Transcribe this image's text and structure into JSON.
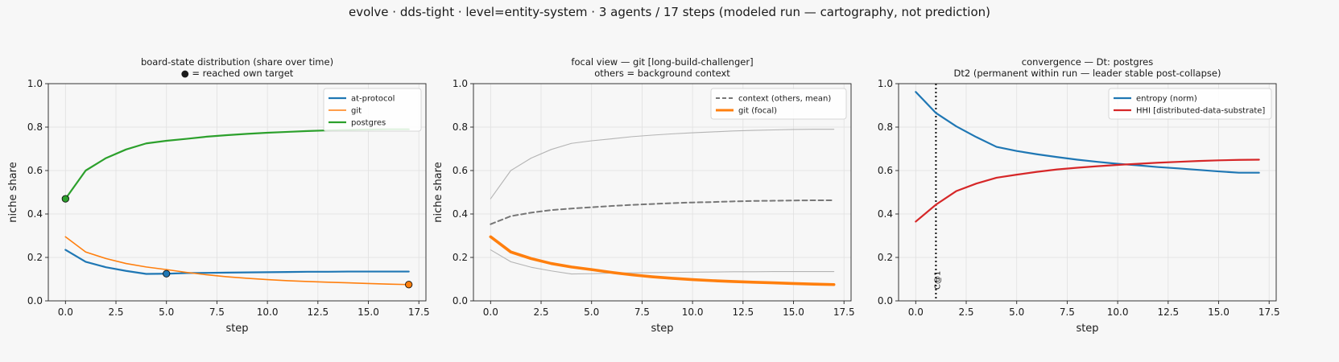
{
  "suptitle": "evolve · dds-tight · level=entity-system · 3 agents / 17 steps   (modeled run — cartography, not prediction)",
  "colors": {
    "blue": "#1f77b4",
    "orange": "#ff7f0e",
    "green": "#2ca02c",
    "red": "#d62728",
    "context": "#777777",
    "background": "#b4b4b4"
  },
  "chart_data": [
    {
      "type": "line",
      "title_lines": [
        "board-state distribution (share over time)",
        "● = reached own target"
      ],
      "xlabel": "step",
      "ylabel": "niche share",
      "xlim": [
        -0.85,
        17.85
      ],
      "ylim": [
        0,
        1
      ],
      "xticks": [
        0,
        2.5,
        5,
        7.5,
        10,
        12.5,
        15,
        17.5
      ],
      "xtick_labels": [
        "0.0",
        "2.5",
        "5.0",
        "7.5",
        "10.0",
        "12.5",
        "15.0",
        "17.5"
      ],
      "yticks": [
        0,
        0.2,
        0.4,
        0.6,
        0.8,
        1.0
      ],
      "ytick_labels": [
        "0.0",
        "0.2",
        "0.4",
        "0.6",
        "0.8",
        "1.0"
      ],
      "grid": true,
      "legend_position": "top-right",
      "x": [
        0,
        1,
        2,
        3,
        4,
        5,
        6,
        7,
        8,
        9,
        10,
        11,
        12,
        13,
        14,
        15,
        16,
        17
      ],
      "series": [
        {
          "name": "at-protocol",
          "color": "#1f77b4",
          "width": 2.2,
          "values": [
            0.235,
            0.18,
            0.155,
            0.138,
            0.124,
            0.125,
            0.128,
            0.129,
            0.13,
            0.131,
            0.132,
            0.133,
            0.134,
            0.134,
            0.135,
            0.135,
            0.135,
            0.135
          ],
          "marker_at": 5
        },
        {
          "name": "git",
          "color": "#ff7f0e",
          "width": 1.6,
          "values": [
            0.295,
            0.225,
            0.195,
            0.172,
            0.156,
            0.144,
            0.131,
            0.12,
            0.111,
            0.104,
            0.098,
            0.093,
            0.089,
            0.086,
            0.083,
            0.08,
            0.077,
            0.075
          ],
          "marker_at": 17
        },
        {
          "name": "postgres",
          "color": "#2ca02c",
          "width": 2.2,
          "values": [
            0.47,
            0.6,
            0.657,
            0.697,
            0.725,
            0.737,
            0.746,
            0.756,
            0.763,
            0.769,
            0.774,
            0.778,
            0.782,
            0.785,
            0.787,
            0.789,
            0.79,
            0.79
          ],
          "marker_at": 0
        }
      ]
    },
    {
      "type": "line",
      "title_lines": [
        "focal view — git  [long-build-challenger]",
        "others = background context"
      ],
      "xlabel": "step",
      "ylabel": "niche share",
      "xlim": [
        -0.85,
        17.85
      ],
      "ylim": [
        0,
        1
      ],
      "xticks": [
        0,
        2.5,
        5,
        7.5,
        10,
        12.5,
        15,
        17.5
      ],
      "xtick_labels": [
        "0.0",
        "2.5",
        "5.0",
        "7.5",
        "10.0",
        "12.5",
        "15.0",
        "17.5"
      ],
      "yticks": [
        0,
        0.2,
        0.4,
        0.6,
        0.8,
        1.0
      ],
      "ytick_labels": [
        "0.0",
        "0.2",
        "0.4",
        "0.6",
        "0.8",
        "1.0"
      ],
      "grid": true,
      "legend_position": "top-right",
      "x": [
        0,
        1,
        2,
        3,
        4,
        5,
        6,
        7,
        8,
        9,
        10,
        11,
        12,
        13,
        14,
        15,
        16,
        17
      ],
      "series": [
        {
          "color": "#b4b4b4",
          "width": 1.1,
          "values": [
            0.47,
            0.6,
            0.657,
            0.697,
            0.725,
            0.737,
            0.746,
            0.756,
            0.763,
            0.769,
            0.774,
            0.778,
            0.782,
            0.785,
            0.787,
            0.789,
            0.79,
            0.79
          ]
        },
        {
          "color": "#b4b4b4",
          "width": 1.1,
          "values": [
            0.235,
            0.18,
            0.155,
            0.138,
            0.124,
            0.125,
            0.128,
            0.129,
            0.13,
            0.131,
            0.132,
            0.133,
            0.134,
            0.134,
            0.135,
            0.135,
            0.135,
            0.135
          ]
        },
        {
          "name": "context (others, mean)",
          "color": "#777777",
          "width": 2,
          "dash": "6,4",
          "values": [
            0.353,
            0.39,
            0.406,
            0.418,
            0.425,
            0.431,
            0.437,
            0.442,
            0.446,
            0.45,
            0.453,
            0.455,
            0.458,
            0.46,
            0.461,
            0.462,
            0.463,
            0.463
          ]
        },
        {
          "name": "git (focal)",
          "color": "#ff7f0e",
          "width": 3.6,
          "values": [
            0.295,
            0.225,
            0.195,
            0.172,
            0.156,
            0.144,
            0.131,
            0.12,
            0.111,
            0.104,
            0.098,
            0.093,
            0.089,
            0.086,
            0.083,
            0.08,
            0.077,
            0.075
          ]
        }
      ]
    },
    {
      "type": "line",
      "title_lines": [
        "convergence — Dt: postgres",
        "Dt2 (permanent within run — leader stable post-collapse)"
      ],
      "xlabel": "step",
      "ylabel": "",
      "xlim": [
        -0.85,
        17.85
      ],
      "ylim": [
        0,
        1
      ],
      "xticks": [
        0,
        2.5,
        5,
        7.5,
        10,
        12.5,
        15,
        17.5
      ],
      "xtick_labels": [
        "0.0",
        "2.5",
        "5.0",
        "7.5",
        "10.0",
        "12.5",
        "15.0",
        "17.5"
      ],
      "yticks": [
        0,
        0.2,
        0.4,
        0.6,
        0.8,
        1.0
      ],
      "ytick_labels": [
        "0.0",
        "0.2",
        "0.4",
        "0.6",
        "0.8",
        "1.0"
      ],
      "grid": true,
      "legend_position": "top-right",
      "vline": {
        "x": 1,
        "label": "C@1"
      },
      "x": [
        0,
        1,
        2,
        3,
        4,
        5,
        6,
        7,
        8,
        9,
        10,
        11,
        12,
        13,
        14,
        15,
        16,
        17
      ],
      "series": [
        {
          "name": "entropy (norm)",
          "color": "#1f77b4",
          "width": 2.2,
          "values": [
            0.962,
            0.865,
            0.804,
            0.754,
            0.709,
            0.69,
            0.675,
            0.662,
            0.65,
            0.64,
            0.631,
            0.624,
            0.616,
            0.61,
            0.603,
            0.596,
            0.59,
            0.59
          ]
        },
        {
          "name": "HHI [distributed-data-substrate]",
          "color": "#d62728",
          "width": 2.2,
          "values": [
            0.365,
            0.443,
            0.505,
            0.54,
            0.567,
            0.581,
            0.594,
            0.605,
            0.613,
            0.62,
            0.626,
            0.631,
            0.636,
            0.64,
            0.644,
            0.647,
            0.649,
            0.65
          ]
        }
      ]
    }
  ]
}
